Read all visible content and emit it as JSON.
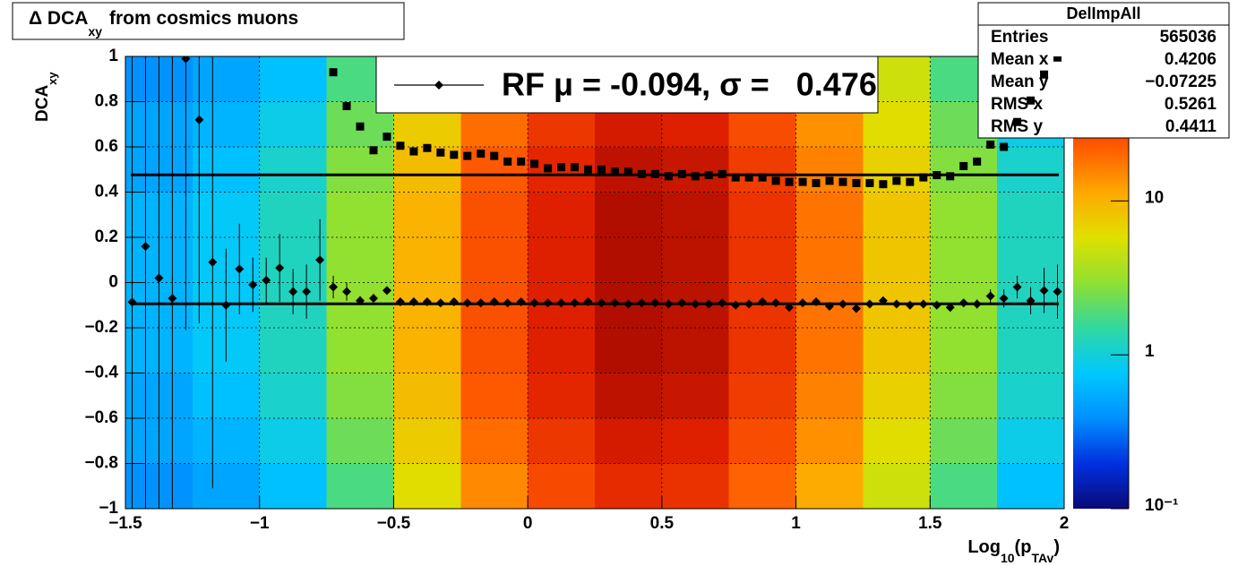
{
  "chart_data": {
    "type": "heatmap",
    "title": [
      "Δ DCA",
      "xy",
      "from cosmics muons"
    ],
    "y_label": [
      "DCA",
      "xy"
    ],
    "x_label": [
      "Log",
      "10",
      "(p",
      "TAv",
      ")"
    ],
    "xlim": [
      -1.5,
      2
    ],
    "ylim": [
      -1,
      1
    ],
    "xticks": [
      {
        "value": -1.5,
        "label": "−1.5"
      },
      {
        "value": -1,
        "label": "−1"
      },
      {
        "value": -0.5,
        "label": "−0.5"
      },
      0,
      0.5,
      1,
      1.5,
      2
    ],
    "yticks": [
      {
        "value": -1,
        "label": "−1"
      },
      {
        "value": -0.8,
        "label": "−0.8"
      },
      {
        "value": -0.6,
        "label": "−0.6"
      },
      {
        "value": -0.4,
        "label": "−0.4"
      },
      {
        "value": -0.2,
        "label": "−0.2"
      },
      0,
      0.2,
      0.4,
      0.6,
      0.8,
      1
    ],
    "grid": true,
    "zlim": [
      0.1,
      87
    ],
    "zlog": true,
    "zticks": [
      {
        "value": 0.1,
        "label": "10⁻¹"
      },
      1,
      10
    ],
    "colormap": [
      "#0a0a78",
      "#0030e0",
      "#0090ff",
      "#00c8ff",
      "#30d8a0",
      "#90e030",
      "#e0e000",
      "#ffa800",
      "#ff5a00",
      "#e02000",
      "#900000"
    ],
    "xbins": [
      -1.5,
      -1.25,
      -1,
      -0.75,
      -0.5,
      -0.25,
      0,
      0.25,
      0.5,
      0.75,
      1,
      1.25,
      1.5,
      1.75,
      2
    ],
    "ybins": [
      -1,
      -0.8,
      -0.6,
      -0.4,
      -0.2,
      0,
      0.2,
      0.4,
      0.6,
      0.8,
      1
    ],
    "z": [
      [
        0.4,
        0.5,
        0.7,
        1.8,
        6,
        15,
        27,
        39,
        36,
        21,
        11,
        5,
        1.8,
        0.7
      ],
      [
        0.5,
        0.6,
        0.9,
        2.3,
        7.5,
        19,
        34,
        49,
        45,
        26,
        14,
        6,
        2.3,
        0.9
      ],
      [
        0.5,
        0.7,
        1.1,
        2.7,
        9,
        23,
        41,
        59,
        54,
        32,
        16,
        7,
        2.7,
        1.1
      ],
      [
        0.6,
        0.8,
        1.2,
        3,
        10,
        25,
        45,
        65,
        60,
        35,
        18,
        8,
        3,
        1.2
      ],
      [
        0.6,
        0.8,
        1.2,
        3,
        10,
        25,
        45,
        65,
        60,
        35,
        18,
        8,
        3,
        1.2
      ],
      [
        0.6,
        0.8,
        1.2,
        3,
        10,
        25,
        45,
        65,
        60,
        35,
        18,
        8,
        3,
        1.2
      ],
      [
        0.6,
        0.8,
        1.2,
        3,
        10,
        25,
        45,
        65,
        60,
        35,
        18,
        8,
        3,
        1.2
      ],
      [
        0.5,
        0.7,
        1.1,
        2.7,
        9,
        23,
        41,
        59,
        54,
        32,
        16,
        7,
        2.7,
        1.1
      ],
      [
        0.5,
        0.6,
        0.9,
        2.3,
        7.5,
        19,
        34,
        49,
        45,
        26,
        14,
        6,
        2.3,
        0.9
      ],
      [
        0.4,
        0.5,
        0.7,
        1.8,
        6,
        15,
        27,
        39,
        36,
        21,
        11,
        5,
        1.8,
        0.7
      ]
    ],
    "profile": {
      "color": "#000000",
      "x": [
        -1.475,
        -1.425,
        -1.375,
        -1.325,
        -1.275,
        -1.225,
        -1.175,
        -1.125,
        -1.075,
        -1.025,
        -0.975,
        -0.925,
        -0.875,
        -0.825,
        -0.775,
        -0.725,
        -0.675,
        -0.625,
        -0.575,
        -0.525,
        -0.475,
        -0.425,
        -0.375,
        -0.325,
        -0.275,
        -0.225,
        -0.175,
        -0.125,
        -0.075,
        -0.025,
        0.025,
        0.075,
        0.125,
        0.175,
        0.225,
        0.275,
        0.325,
        0.375,
        0.425,
        0.475,
        0.525,
        0.575,
        0.625,
        0.675,
        0.725,
        0.775,
        0.825,
        0.875,
        0.925,
        0.975,
        1.025,
        1.075,
        1.125,
        1.175,
        1.225,
        1.275,
        1.325,
        1.375,
        1.425,
        1.475,
        1.525,
        1.575,
        1.625,
        1.675,
        1.725,
        1.775,
        1.825,
        1.875,
        1.925,
        1.975
      ],
      "mean": [
        -0.086,
        0.16,
        0.02,
        -0.07,
        0.99,
        0.72,
        0.09,
        -0.1,
        0.06,
        -0.01,
        0.01,
        0.065,
        -0.04,
        -0.04,
        0.1,
        -0.02,
        -0.04,
        -0.08,
        -0.07,
        -0.035,
        -0.085,
        -0.085,
        -0.085,
        -0.09,
        -0.085,
        -0.09,
        -0.09,
        -0.085,
        -0.09,
        -0.085,
        -0.09,
        -0.09,
        -0.09,
        -0.09,
        -0.085,
        -0.09,
        -0.09,
        -0.095,
        -0.09,
        -0.09,
        -0.095,
        -0.09,
        -0.095,
        -0.095,
        -0.09,
        -0.1,
        -0.095,
        -0.085,
        -0.09,
        -0.11,
        -0.09,
        -0.085,
        -0.105,
        -0.095,
        -0.115,
        -0.095,
        -0.08,
        -0.095,
        -0.1,
        -0.095,
        -0.1,
        -0.11,
        -0.09,
        -0.095,
        -0.06,
        -0.07,
        -0.02,
        -0.08,
        -0.035,
        -0.04
      ],
      "mean_errors": [
        1.2,
        1.2,
        1.2,
        1.2,
        1.2,
        0.9,
        1.0,
        0.25,
        0.2,
        0.12,
        0.1,
        0.15,
        0.1,
        0.12,
        0.18,
        0.05,
        0.04,
        0.02,
        0.02,
        0.015,
        0.01,
        0.01,
        0.01,
        0.01,
        0.01,
        0.01,
        0.01,
        0.01,
        0.01,
        0.01,
        0.01,
        0.01,
        0.01,
        0.01,
        0.01,
        0.01,
        0.01,
        0.01,
        0.01,
        0.01,
        0.01,
        0.01,
        0.01,
        0.01,
        0.01,
        0.01,
        0.01,
        0.01,
        0.01,
        0.01,
        0.01,
        0.01,
        0.01,
        0.01,
        0.01,
        0.01,
        0.01,
        0.01,
        0.01,
        0.01,
        0.01,
        0.01,
        0.015,
        0.02,
        0.03,
        0.04,
        0.05,
        0.06,
        0.1,
        0.12
      ],
      "sigma": [
        null,
        null,
        null,
        null,
        null,
        null,
        null,
        null,
        null,
        null,
        null,
        null,
        null,
        null,
        null,
        0.93,
        0.78,
        0.69,
        0.585,
        0.645,
        0.605,
        0.58,
        0.595,
        0.575,
        0.565,
        0.56,
        0.57,
        0.56,
        0.535,
        0.535,
        0.525,
        0.505,
        0.51,
        0.51,
        0.5,
        0.5,
        0.49,
        0.49,
        0.48,
        0.48,
        0.47,
        0.48,
        0.47,
        0.475,
        0.48,
        0.465,
        0.465,
        0.465,
        0.45,
        0.445,
        0.445,
        0.44,
        0.45,
        0.445,
        0.44,
        0.44,
        0.435,
        0.45,
        0.445,
        0.465,
        0.475,
        0.47,
        0.515,
        0.535,
        0.61,
        0.6,
        0.71,
        0.805,
        0.92,
        0.995
      ]
    },
    "fit": {
      "mean": -0.094,
      "sigma": 0.476,
      "range": [
        -1.48,
        1.98
      ]
    },
    "legend": {
      "text": "RF μ = -0.094, σ =   0.476",
      "corner": "top"
    },
    "stats": {
      "title": "DelImpAll",
      "rows": [
        [
          "Entries",
          "565036"
        ],
        [
          "Mean x",
          "0.4206"
        ],
        [
          "Mean y",
          "−0.07225"
        ],
        [
          "RMS x",
          "0.5261"
        ],
        [
          "RMS y",
          "0.4411"
        ]
      ]
    }
  }
}
